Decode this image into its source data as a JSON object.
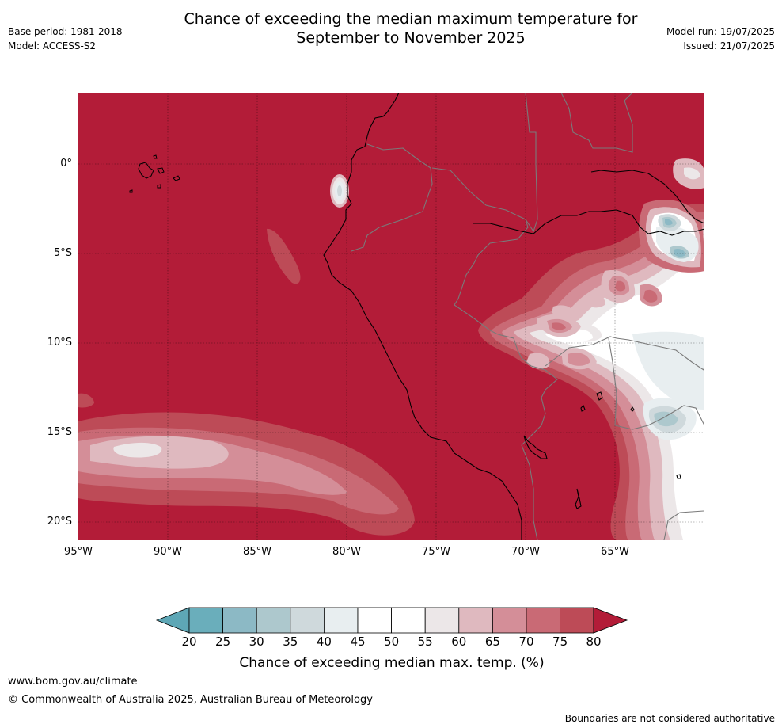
{
  "header": {
    "title_line1": "Chance of exceeding the median maximum temperature for",
    "title_line2": "September to November 2025",
    "base_period": "Base period: 1981-2018",
    "model": "Model: ACCESS-S2",
    "model_run": "Model run: 19/07/2025",
    "issued": "Issued: 21/07/2025"
  },
  "map": {
    "lat_ticks": [
      "0°",
      "5°S",
      "10°S",
      "15°S",
      "20°S"
    ],
    "lon_ticks": [
      "95°W",
      "90°W",
      "85°W",
      "80°W",
      "75°W",
      "70°W",
      "65°W"
    ],
    "dominant_category": "80",
    "gridlines": true
  },
  "colorbar": {
    "levels": [
      "20",
      "25",
      "30",
      "35",
      "40",
      "45",
      "50",
      "55",
      "60",
      "65",
      "70",
      "75",
      "80"
    ],
    "colors": [
      "#5ea7b6",
      "#6aaebb",
      "#8cb9c5",
      "#adc8cd",
      "#cfd9dc",
      "#e8eef0",
      "#ffffff",
      "#ffffff",
      "#ece7e8",
      "#dfb9bf",
      "#d48e98",
      "#c96a75",
      "#bd4b57",
      "#b31c38"
    ],
    "label": "Chance of exceeding median max. temp. (%)"
  },
  "footer": {
    "url": "www.bom.gov.au/climate",
    "copyright": "© Commonwealth of Australia 2025, Australian Bureau of Meteorology",
    "disclaimer": "Boundaries are not considered authoritative"
  }
}
